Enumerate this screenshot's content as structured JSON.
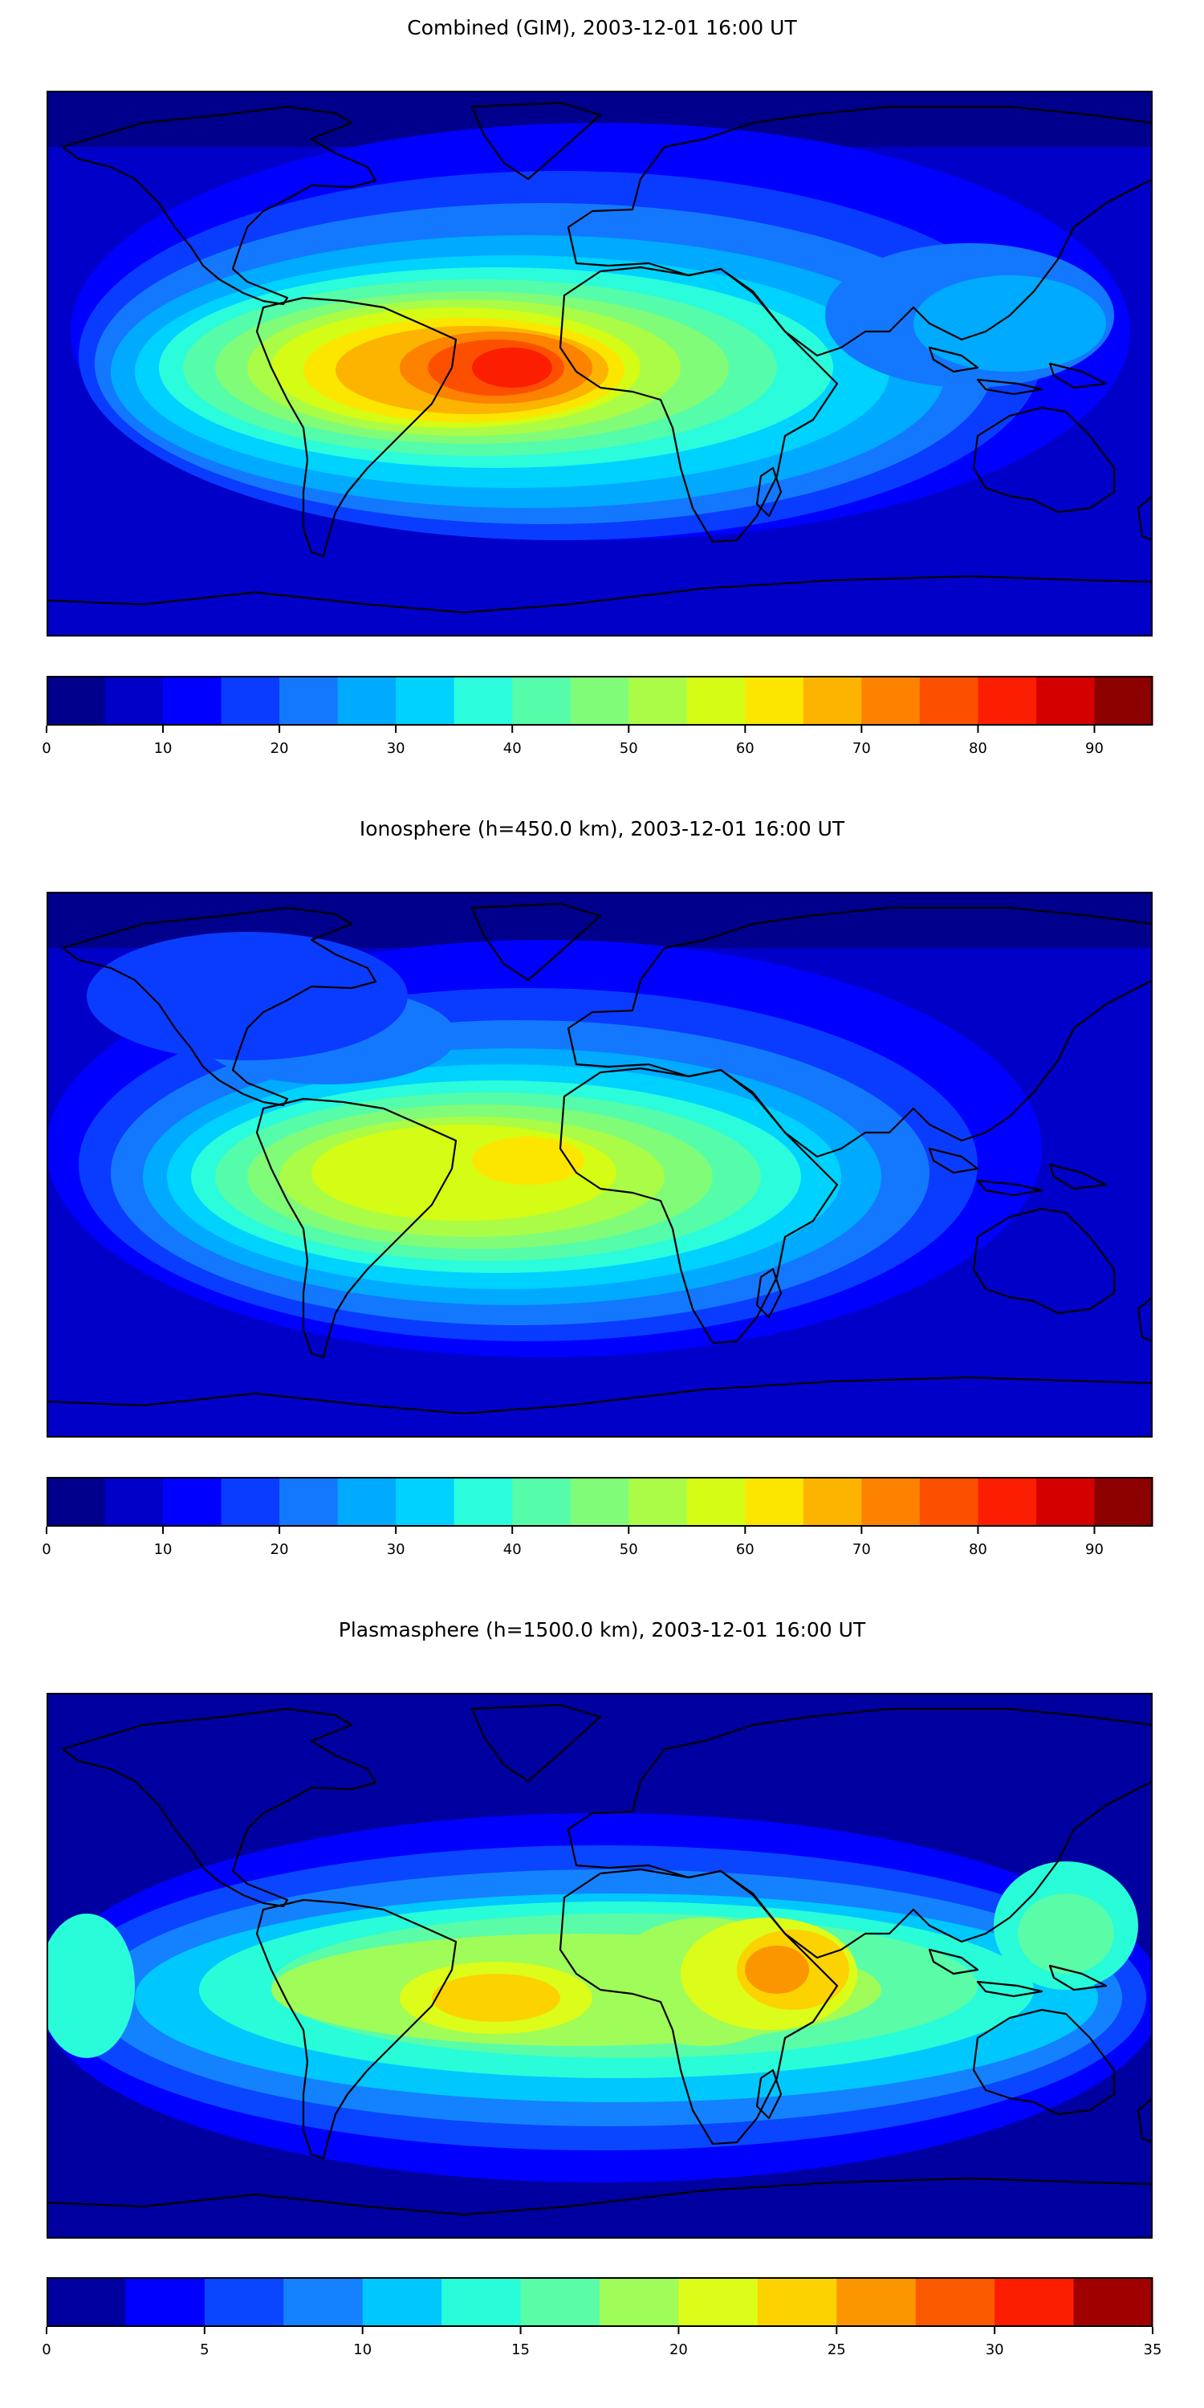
{
  "chart_data": [
    {
      "type": "heatmap",
      "title": "Combined (GIM), 2003-12-01 16:00 UT",
      "colorbar": {
        "levels": [
          0,
          5,
          10,
          15,
          20,
          25,
          30,
          35,
          40,
          45,
          50,
          55,
          60,
          65,
          70,
          75,
          80,
          85,
          90,
          95
        ],
        "ticks": [
          0,
          10,
          20,
          30,
          40,
          50,
          60,
          70,
          80,
          90
        ],
        "tick_labels": [
          "0",
          "10",
          "20",
          "30",
          "40",
          "50",
          "60",
          "70",
          "80",
          "90"
        ],
        "colors": [
          "#00008c",
          "#0000c8",
          "#0000ff",
          "#0a3cff",
          "#1478ff",
          "#00aaff",
          "#00d2ff",
          "#2afcdc",
          "#55fcaa",
          "#80fc78",
          "#aafc46",
          "#d4fc14",
          "#fce600",
          "#fcb400",
          "#fc8200",
          "#fc5000",
          "#fc1e00",
          "#d40000",
          "#8c0000"
        ]
      },
      "features": [
        {
          "name": "max-region-south-america",
          "value": 80
        },
        {
          "name": "equatorial-band-atlantic-africa",
          "value": 60
        },
        {
          "name": "pacific-equatorial",
          "value": 30
        },
        {
          "name": "high-latitudes",
          "value": 10
        }
      ]
    },
    {
      "type": "heatmap",
      "title": "Ionosphere  (h=450.0 km), 2003-12-01 16:00 UT",
      "colorbar": {
        "levels": [
          0,
          5,
          10,
          15,
          20,
          25,
          30,
          35,
          40,
          45,
          50,
          55,
          60,
          65,
          70,
          75,
          80,
          85,
          90,
          95
        ],
        "ticks": [
          0,
          10,
          20,
          30,
          40,
          50,
          60,
          70,
          80,
          90
        ],
        "tick_labels": [
          "0",
          "10",
          "20",
          "30",
          "40",
          "50",
          "60",
          "70",
          "80",
          "90"
        ],
        "colors": [
          "#00008c",
          "#0000c8",
          "#0000ff",
          "#0a3cff",
          "#1478ff",
          "#00aaff",
          "#00d2ff",
          "#2afcdc",
          "#55fcaa",
          "#80fc78",
          "#aafc46",
          "#d4fc14",
          "#fce600",
          "#fcb400",
          "#fc8200",
          "#fc5000",
          "#fc1e00",
          "#d40000",
          "#8c0000"
        ]
      },
      "features": [
        {
          "name": "max-region-atlantic",
          "value": 60
        },
        {
          "name": "south-america",
          "value": 55
        },
        {
          "name": "africa",
          "value": 50
        },
        {
          "name": "high-latitudes",
          "value": 10
        }
      ]
    },
    {
      "type": "heatmap",
      "title": "Plasmasphere (h=1500.0 km), 2003-12-01 16:00 UT",
      "colorbar": {
        "levels": [
          0,
          2.5,
          5,
          7.5,
          10,
          12.5,
          15,
          17.5,
          20,
          22.5,
          25,
          27.5,
          30,
          32.5,
          35
        ],
        "ticks": [
          0,
          5,
          10,
          15,
          20,
          25,
          30,
          35
        ],
        "tick_labels": [
          "0",
          "5",
          "10",
          "15",
          "20",
          "25",
          "30",
          "35"
        ],
        "colors": [
          "#0000a0",
          "#0000ff",
          "#0a46ff",
          "#1482ff",
          "#00c8ff",
          "#28fcd8",
          "#5afca8",
          "#a0fc58",
          "#dcfc1a",
          "#fcd200",
          "#fc9600",
          "#fc5a00",
          "#fc1e00",
          "#a00000"
        ]
      },
      "features": [
        {
          "name": "max-region-east-africa",
          "value": 25
        },
        {
          "name": "south-america",
          "value": 20
        },
        {
          "name": "indian-ocean",
          "value": 17.5
        },
        {
          "name": "high-latitudes",
          "value": 2.5
        }
      ]
    }
  ]
}
